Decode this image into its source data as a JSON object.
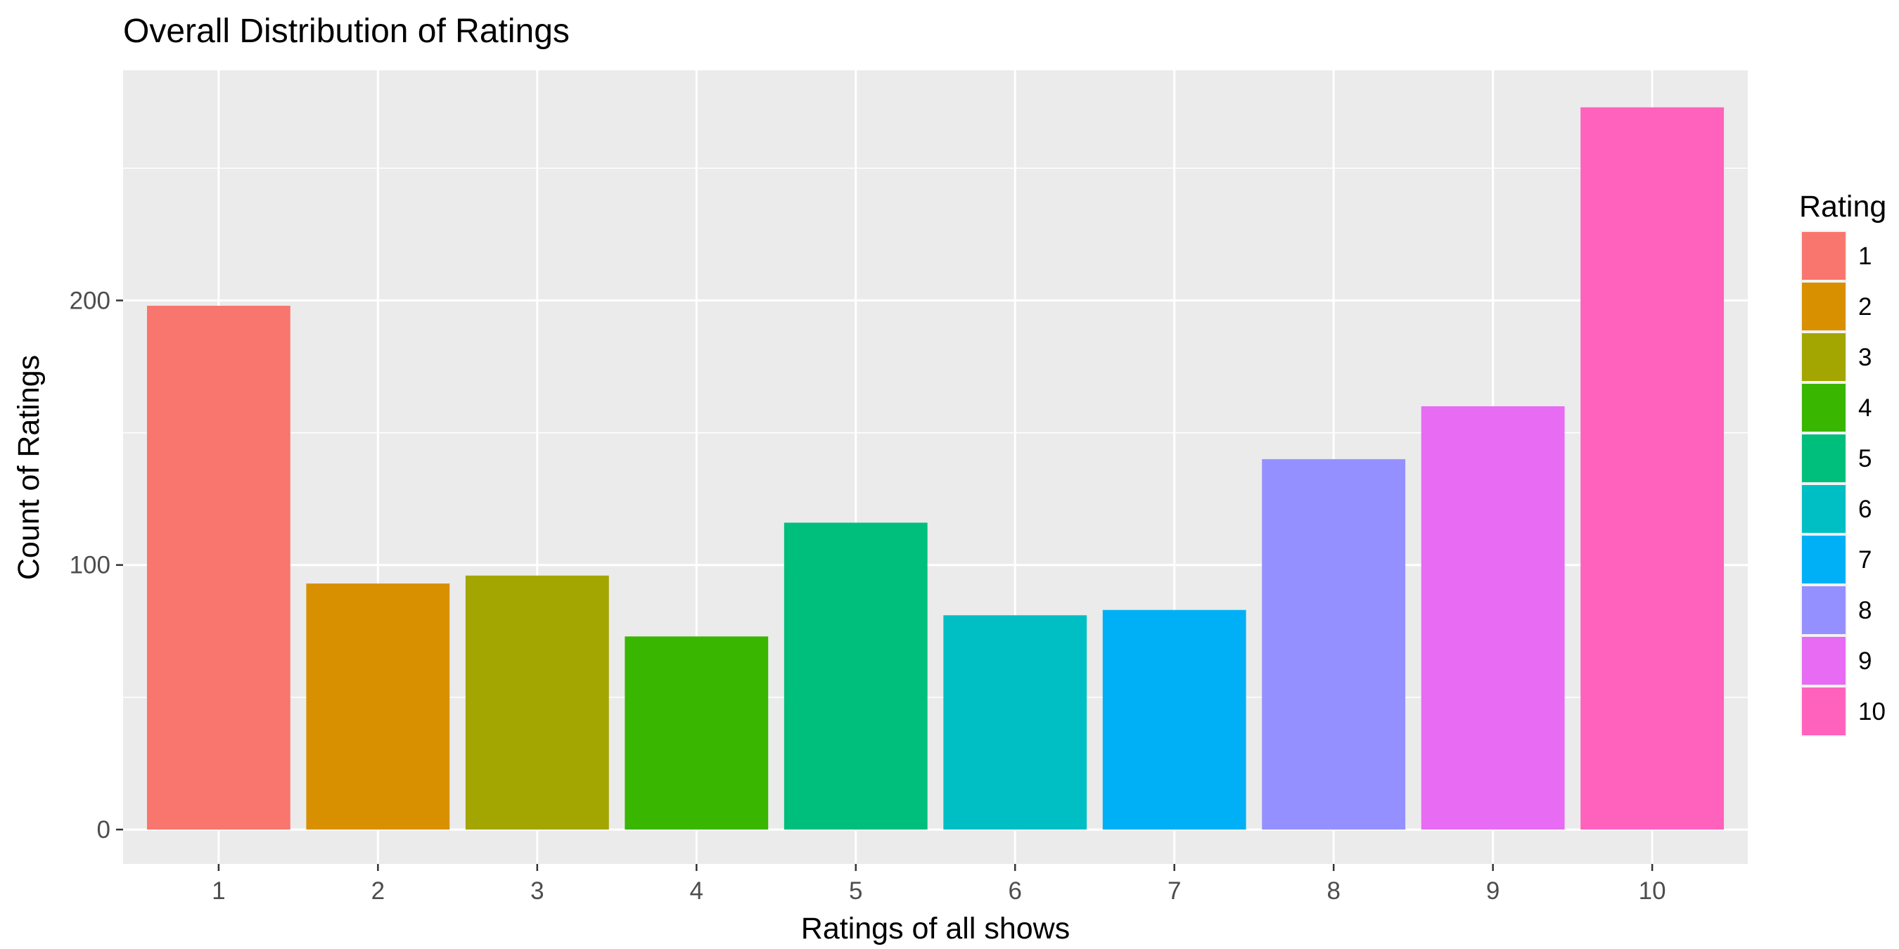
{
  "chart_data": {
    "type": "bar",
    "title": "Overall Distribution of Ratings",
    "xlabel": "Ratings of all shows",
    "ylabel": "Count of Ratings",
    "categories": [
      "1",
      "2",
      "3",
      "4",
      "5",
      "6",
      "7",
      "8",
      "9",
      "10"
    ],
    "values": [
      198,
      93,
      96,
      73,
      116,
      81,
      83,
      140,
      160,
      273
    ],
    "ylim": [
      -13,
      287
    ],
    "yticks": [
      0,
      100,
      200
    ],
    "ytick_labels": [
      "0",
      "100",
      "200"
    ],
    "grid": true,
    "legend": {
      "title": "Rating",
      "position": "right",
      "labels": [
        "1",
        "2",
        "3",
        "4",
        "5",
        "6",
        "7",
        "8",
        "9",
        "10"
      ]
    },
    "colors": [
      "#F8766D",
      "#D89000",
      "#A3A500",
      "#39B600",
      "#00BF7D",
      "#00BFC4",
      "#00B0F6",
      "#9590FF",
      "#E76BF3",
      "#FF62BC"
    ],
    "panel_background": "#EBEBEB",
    "grid_color": "#FFFFFF"
  }
}
